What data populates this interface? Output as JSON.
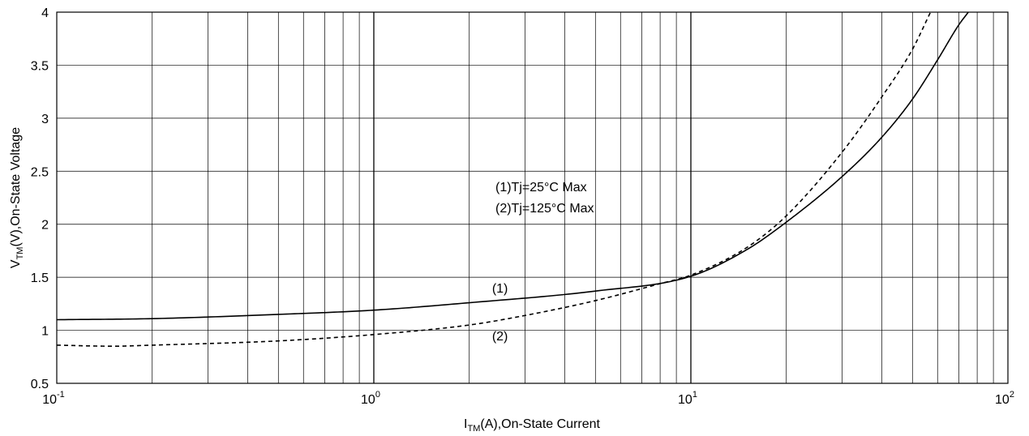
{
  "chart_data": {
    "type": "line",
    "xscale": "log",
    "xlim": [
      0.1,
      100
    ],
    "ylim": [
      0.5,
      4
    ],
    "grid": true,
    "x_ticks": [
      {
        "base": "10",
        "exp": "-1",
        "value": 0.1
      },
      {
        "base": "10",
        "exp": "0",
        "value": 1
      },
      {
        "base": "10",
        "exp": "1",
        "value": 10
      },
      {
        "base": "10",
        "exp": "2",
        "value": 100
      }
    ],
    "y_ticks": [
      {
        "label": "0.5",
        "value": 0.5
      },
      {
        "label": "1",
        "value": 1
      },
      {
        "label": "1.5",
        "value": 1.5
      },
      {
        "label": "2",
        "value": 2
      },
      {
        "label": "2.5",
        "value": 2.5
      },
      {
        "label": "3",
        "value": 3
      },
      {
        "label": "3.5",
        "value": 3.5
      },
      {
        "label": "4",
        "value": 4
      }
    ],
    "xlabel": {
      "main": "I",
      "sub": "TM",
      "rest": "(A),On-State Current"
    },
    "ylabel": {
      "main": "V",
      "sub": "TM",
      "rest": "(V),On-State Voltage"
    },
    "legend_lines": [
      "(1)Tj=25°C Max",
      "(2)Tj=125°C Max"
    ],
    "series": [
      {
        "name": "(1)",
        "style": "solid",
        "points": [
          [
            0.1,
            1.1
          ],
          [
            0.2,
            1.11
          ],
          [
            0.5,
            1.15
          ],
          [
            1,
            1.19
          ],
          [
            2,
            1.26
          ],
          [
            5,
            1.37
          ],
          [
            10,
            1.51
          ],
          [
            15,
            1.76
          ],
          [
            20,
            2.02
          ],
          [
            30,
            2.45
          ],
          [
            40,
            2.82
          ],
          [
            50,
            3.18
          ],
          [
            60,
            3.55
          ],
          [
            70,
            3.88
          ],
          [
            75,
            4.0
          ]
        ]
      },
      {
        "name": "(2)",
        "style": "dashed",
        "points": [
          [
            0.1,
            0.86
          ],
          [
            0.15,
            0.85
          ],
          [
            0.2,
            0.86
          ],
          [
            0.5,
            0.9
          ],
          [
            1,
            0.96
          ],
          [
            2,
            1.05
          ],
          [
            3,
            1.14
          ],
          [
            5,
            1.28
          ],
          [
            8,
            1.44
          ],
          [
            10,
            1.52
          ],
          [
            15,
            1.78
          ],
          [
            20,
            2.08
          ],
          [
            30,
            2.68
          ],
          [
            40,
            3.2
          ],
          [
            50,
            3.65
          ],
          [
            57,
            4.0
          ]
        ]
      }
    ],
    "series_labels": [
      {
        "text": "(1)",
        "x": 2.5,
        "y": 1.4
      },
      {
        "text": "(2)",
        "x": 2.5,
        "y": 0.95
      }
    ]
  }
}
